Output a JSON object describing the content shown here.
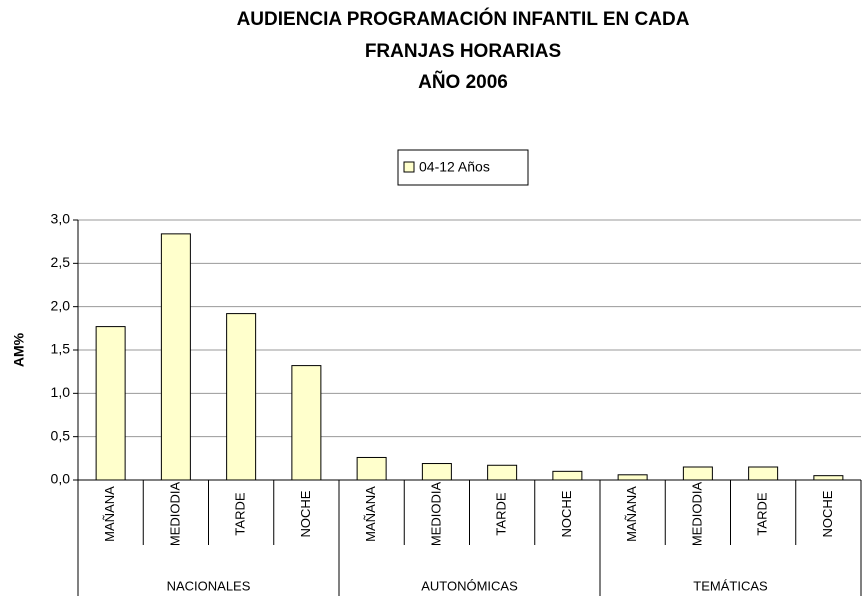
{
  "chart_data": {
    "type": "bar",
    "title": [
      "AUDIENCIA PROGRAMACIÓN INFANTIL EN CADA",
      "FRANJAS HORARIAS",
      "AÑO 2006"
    ],
    "y_label": "AM%",
    "categories": [
      "MAÑANA",
      "MEDIODIA",
      "TARDE",
      "NOCHE",
      "MAÑANA",
      "MEDIODIA",
      "TARDE",
      "NOCHE",
      "MAÑANA",
      "MEDIODIA",
      "TARDE",
      "NOCHE"
    ],
    "category_groups": [
      "NACIONALES",
      "AUTONÓMICAS",
      "TEMÁTICAS"
    ],
    "series": [
      {
        "name": "04-12 Años",
        "color": "#ffffcc",
        "values": [
          1.77,
          2.84,
          1.92,
          1.32,
          0.26,
          0.19,
          0.17,
          0.1,
          0.06,
          0.15,
          0.15,
          0.05
        ]
      }
    ],
    "ylim": [
      0,
      3
    ],
    "yticks": [
      {
        "value": 0,
        "label": "0,0"
      },
      {
        "value": 0.5,
        "label": "0,5"
      },
      {
        "value": 1,
        "label": "1,0"
      },
      {
        "value": 1.5,
        "label": "1,5"
      },
      {
        "value": 2,
        "label": "2,0"
      },
      {
        "value": 2.5,
        "label": "2,5"
      },
      {
        "value": 3,
        "label": "3,0"
      }
    ],
    "grid": true,
    "legend": "top"
  }
}
